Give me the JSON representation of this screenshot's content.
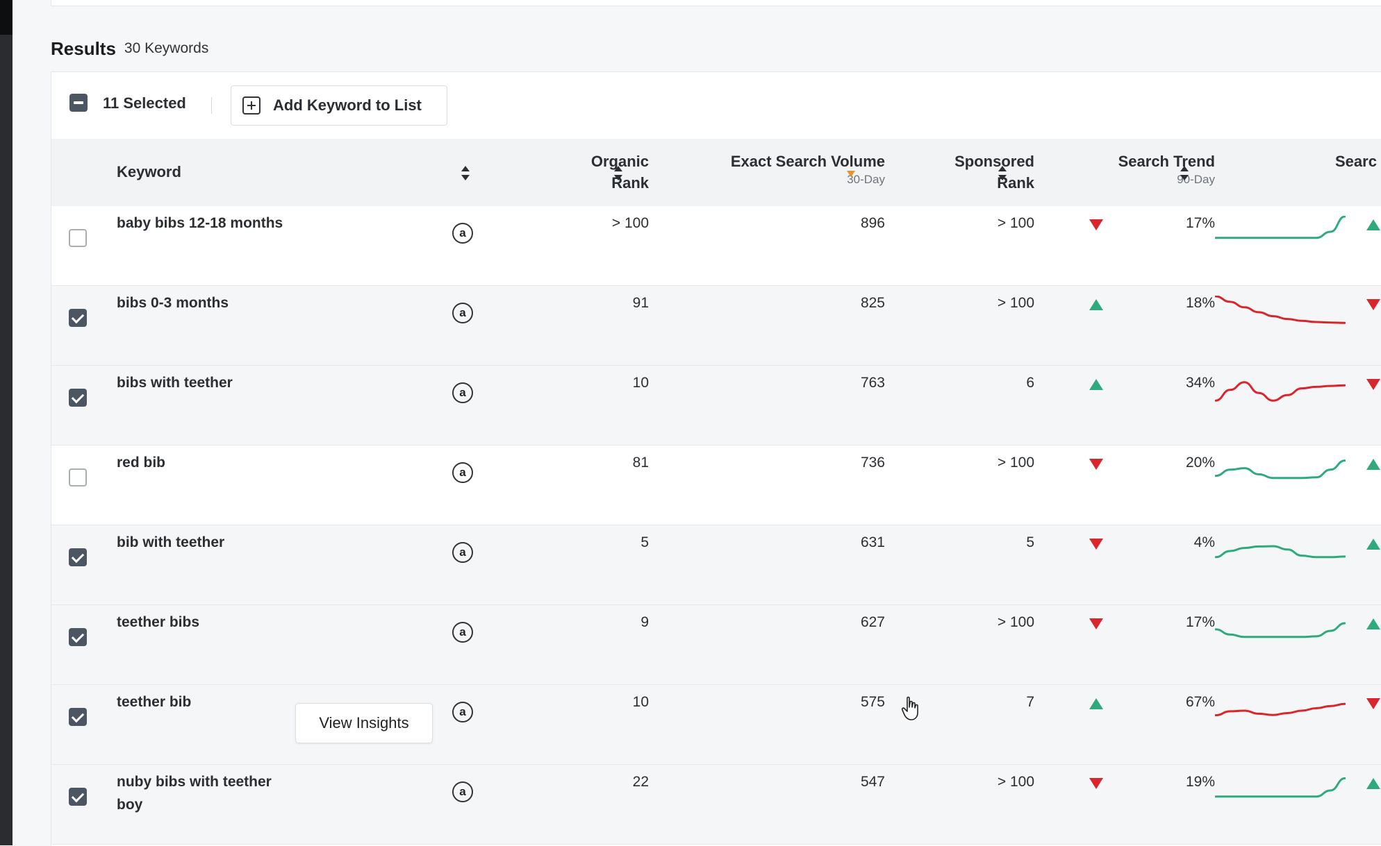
{
  "results": {
    "title": "Results",
    "count": "30 Keywords"
  },
  "toolbar": {
    "selected_label": "11 Selected",
    "add_keyword_label": "Add Keyword to List"
  },
  "columns": {
    "keyword": "Keyword",
    "organic_rank": [
      "Organic",
      "Rank"
    ],
    "exact_search_volume": {
      "label": "Exact Search Volume",
      "sub": "30-Day"
    },
    "sponsored_rank": [
      "Sponsored",
      "Rank"
    ],
    "search_trend": {
      "label": "Search Trend",
      "sub": "90-Day"
    },
    "next_column_partial": "Searc"
  },
  "row_action": {
    "view_insights_label": "View Insights"
  },
  "amazon_badge_glyph": "a",
  "rows": [
    {
      "selected": false,
      "keyword": "baby bibs 12-18 months",
      "organic_rank": "> 100",
      "exact_search_volume": "896",
      "sponsored_rank": "> 100",
      "trend_direction": "down",
      "trend_percent": "17%",
      "sparkline_color": "#2eaa7c",
      "sparkline": [
        0.3,
        0.3,
        0.3,
        0.3,
        0.3,
        0.3,
        0.3,
        0.3,
        0.5,
        1.0
      ],
      "next_col_direction": "up"
    },
    {
      "selected": true,
      "keyword": "bibs 0-3 months",
      "organic_rank": "91",
      "exact_search_volume": "825",
      "sponsored_rank": "> 100",
      "trend_direction": "up",
      "trend_percent": "18%",
      "sparkline_color": "#d8262c",
      "sparkline": [
        1.0,
        0.82,
        0.64,
        0.48,
        0.35,
        0.26,
        0.2,
        0.16,
        0.14,
        0.13
      ],
      "next_col_direction": "down"
    },
    {
      "selected": true,
      "keyword": "bibs with teether",
      "organic_rank": "10",
      "exact_search_volume": "763",
      "sponsored_rank": "6",
      "trend_direction": "up",
      "trend_percent": "34%",
      "sparkline_color": "#d8262c",
      "sparkline": [
        0.2,
        0.55,
        0.8,
        0.45,
        0.2,
        0.38,
        0.6,
        0.65,
        0.68,
        0.7
      ],
      "next_col_direction": "down"
    },
    {
      "selected": false,
      "keyword": "red bib",
      "organic_rank": "81",
      "exact_search_volume": "736",
      "sponsored_rank": "> 100",
      "trend_direction": "down",
      "trend_percent": "20%",
      "sparkline_color": "#2eaa7c",
      "sparkline": [
        0.35,
        0.55,
        0.6,
        0.4,
        0.28,
        0.28,
        0.28,
        0.3,
        0.55,
        0.85
      ],
      "next_col_direction": "up"
    },
    {
      "selected": true,
      "keyword": "bib with teether",
      "organic_rank": "5",
      "exact_search_volume": "631",
      "sponsored_rank": "5",
      "trend_direction": "down",
      "trend_percent": "4%",
      "sparkline_color": "#2eaa7c",
      "sparkline": [
        0.3,
        0.5,
        0.6,
        0.65,
        0.66,
        0.55,
        0.35,
        0.3,
        0.3,
        0.32
      ],
      "next_col_direction": "up"
    },
    {
      "selected": true,
      "keyword": "teether bibs",
      "organic_rank": "9",
      "exact_search_volume": "627",
      "sponsored_rank": "> 100",
      "trend_direction": "down",
      "trend_percent": "17%",
      "sparkline_color": "#2eaa7c",
      "sparkline": [
        0.55,
        0.38,
        0.3,
        0.3,
        0.3,
        0.3,
        0.3,
        0.32,
        0.5,
        0.75
      ],
      "next_col_direction": "up"
    },
    {
      "selected": true,
      "keyword": "teether bib",
      "organic_rank": "10",
      "exact_search_volume": "575",
      "sponsored_rank": "7",
      "trend_direction": "up",
      "trend_percent": "67%",
      "sparkline_color": "#d8262c",
      "sparkline": [
        0.35,
        0.48,
        0.5,
        0.4,
        0.36,
        0.42,
        0.5,
        0.58,
        0.65,
        0.72
      ],
      "next_col_direction": "down",
      "show_view_insights": true
    },
    {
      "selected": true,
      "keyword": "nuby bibs with teether boy",
      "organic_rank": "22",
      "exact_search_volume": "547",
      "sponsored_rank": "> 100",
      "trend_direction": "down",
      "trend_percent": "19%",
      "sparkline_color": "#2eaa7c",
      "sparkline": [
        0.3,
        0.3,
        0.3,
        0.3,
        0.3,
        0.3,
        0.3,
        0.3,
        0.5,
        0.9
      ],
      "next_col_direction": "up"
    }
  ]
}
